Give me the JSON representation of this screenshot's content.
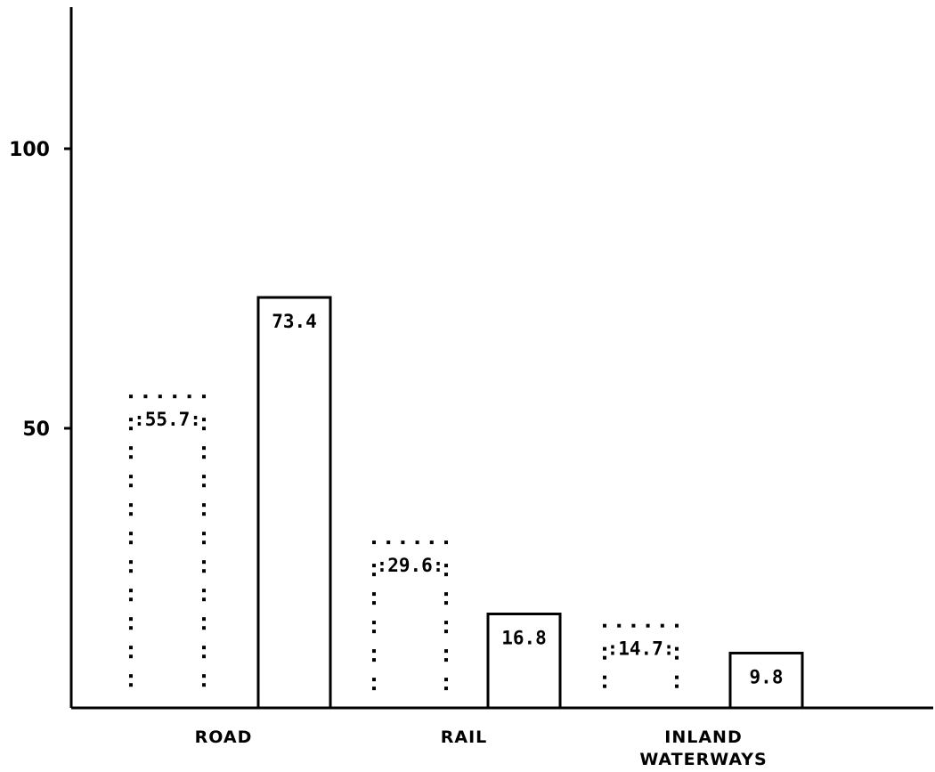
{
  "chart_data": {
    "type": "bar",
    "title": "",
    "xlabel": "",
    "ylabel": "",
    "ylim": [
      0,
      125
    ],
    "yticks": [
      50,
      100
    ],
    "yticklabels": [
      "50",
      "100"
    ],
    "categories": [
      "ROAD",
      "RAIL",
      "INLAND WATERWAYS"
    ],
    "category_labels": [
      [
        "ROAD"
      ],
      [
        "RAIL"
      ],
      [
        "INLAND",
        "WATERWAYS"
      ]
    ],
    "series": [
      {
        "style": "dotted outline",
        "values": [
          55.7,
          29.6,
          14.7
        ],
        "labels": [
          ":55.7:",
          ":29.6:",
          ":14.7:"
        ]
      },
      {
        "style": "solid outline",
        "values": [
          73.4,
          16.8,
          9.8
        ],
        "labels": [
          "73.4",
          "16.8",
          "9.8"
        ]
      }
    ],
    "grid": false,
    "legend": "none",
    "colors": {
      "ink": "#000000",
      "background": "#ffffff"
    }
  }
}
